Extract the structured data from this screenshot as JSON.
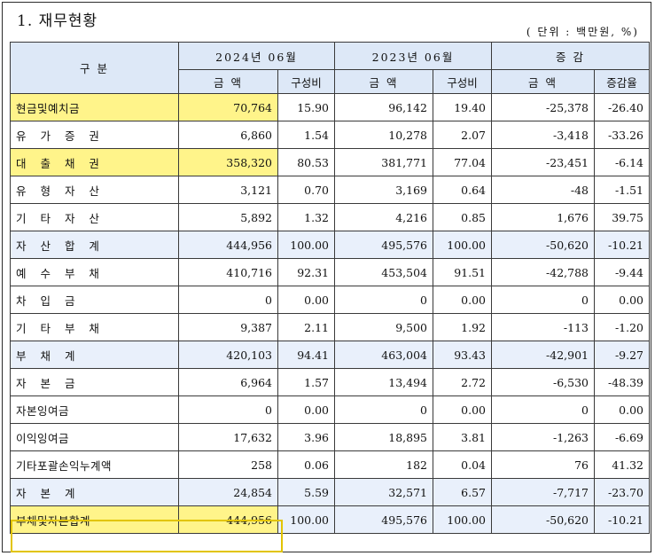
{
  "title": "1. 재무현황",
  "unit": "( 단위 : 백만원, %)",
  "header": {
    "category": "구 분",
    "period1": "2024년 06월",
    "period2": "2023년 06월",
    "change": "증 감",
    "amount": "금 액",
    "ratio": "구성비",
    "change_rate": "증감율"
  },
  "rows": [
    {
      "label": "현금및예치금",
      "a1": "70,764",
      "r1": "15.90",
      "a2": "96,142",
      "r2": "19.40",
      "d": "-25,378",
      "dr": "-26.40"
    },
    {
      "label": "유 가 증 권",
      "a1": "6,860",
      "r1": "1.54",
      "a2": "10,278",
      "r2": "2.07",
      "d": "-3,418",
      "dr": "-33.26"
    },
    {
      "label": "대 출 채 권",
      "a1": "358,320",
      "r1": "80.53",
      "a2": "381,771",
      "r2": "77.04",
      "d": "-23,451",
      "dr": "-6.14"
    },
    {
      "label": "유 형 자 산",
      "a1": "3,121",
      "r1": "0.70",
      "a2": "3,169",
      "r2": "0.64",
      "d": "-48",
      "dr": "-1.51"
    },
    {
      "label": "기 타 자 산",
      "a1": "5,892",
      "r1": "1.32",
      "a2": "4,216",
      "r2": "0.85",
      "d": "1,676",
      "dr": "39.75"
    },
    {
      "label": "자 산 합 계",
      "a1": "444,956",
      "r1": "100.00",
      "a2": "495,576",
      "r2": "100.00",
      "d": "-50,620",
      "dr": "-10.21"
    },
    {
      "label": "예 수 부 채",
      "a1": "410,716",
      "r1": "92.31",
      "a2": "453,504",
      "r2": "91.51",
      "d": "-42,788",
      "dr": "-9.44"
    },
    {
      "label": "차 입 금",
      "a1": "0",
      "r1": "0.00",
      "a2": "0",
      "r2": "0.00",
      "d": "0",
      "dr": "0.00"
    },
    {
      "label": "기 타 부 채",
      "a1": "9,387",
      "r1": "2.11",
      "a2": "9,500",
      "r2": "1.92",
      "d": "-113",
      "dr": "-1.20"
    },
    {
      "label": "부 채 계",
      "a1": "420,103",
      "r1": "94.41",
      "a2": "463,004",
      "r2": "93.43",
      "d": "-42,901",
      "dr": "-9.27"
    },
    {
      "label": "자 본 금",
      "a1": "6,964",
      "r1": "1.57",
      "a2": "13,494",
      "r2": "2.72",
      "d": "-6,530",
      "dr": "-48.39"
    },
    {
      "label": "자본잉여금",
      "a1": "0",
      "r1": "0.00",
      "a2": "0",
      "r2": "0.00",
      "d": "0",
      "dr": "0.00"
    },
    {
      "label": "이익잉여금",
      "a1": "17,632",
      "r1": "3.96",
      "a2": "18,895",
      "r2": "3.81",
      "d": "-1,263",
      "dr": "-6.69"
    },
    {
      "label": "기타포괄손익누계액",
      "a1": "258",
      "r1": "0.06",
      "a2": "182",
      "r2": "0.04",
      "d": "76",
      "dr": "41.32"
    },
    {
      "label": "자 본 계",
      "a1": "24,854",
      "r1": "5.59",
      "a2": "32,571",
      "r2": "6.57",
      "d": "-7,717",
      "dr": "-23.70"
    },
    {
      "label": "부채및자본합계",
      "a1": "444,956",
      "r1": "100.00",
      "a2": "495,576",
      "r2": "100.00",
      "d": "-50,620",
      "dr": "-10.21"
    }
  ],
  "highlight_color": "#fff48a",
  "summary_row_color": "#e9f0fb",
  "header_color": "#dde8f7"
}
